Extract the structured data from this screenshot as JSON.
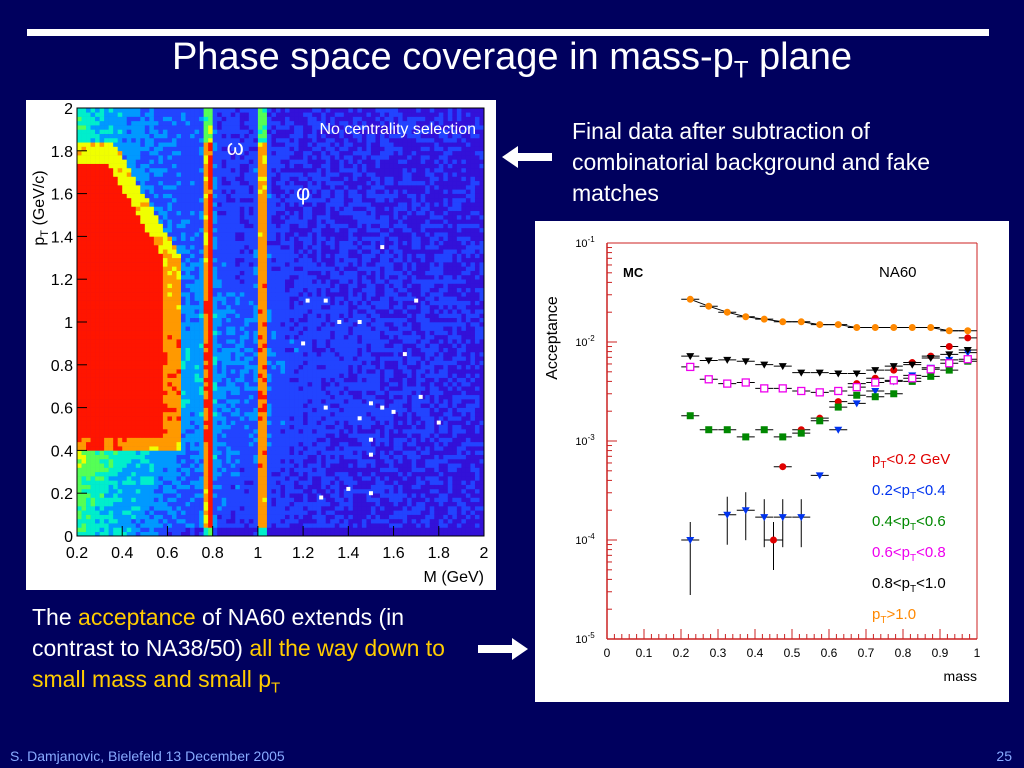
{
  "slide": {
    "title_main": "Phase space coverage in mass-p",
    "title_sub": "T",
    "title_end": " plane",
    "description": "Final data after subtraction of combinatorial background and fake matches",
    "bottom_1": "The ",
    "bottom_2": "acceptance",
    "bottom_3": " of NA60 extends (in contrast to NA38/50) ",
    "bottom_4": "all the way down to small mass and small p",
    "bottom_sub": "T",
    "footer_left": "S. Damjanovic, Bielefeld 13 December 2005",
    "footer_right": "25",
    "colors": {
      "background": "#00005e",
      "highlight": "#ffcc00",
      "footer": "#88aaff"
    }
  },
  "chart_data": [
    {
      "type": "heatmap",
      "annotation": "No centrality selection",
      "xlabel": "M (GeV)",
      "ylabel_main": "p",
      "ylabel_sub": "T",
      "ylabel_end": " (GeV/c)",
      "xlim": [
        0.2,
        2.0
      ],
      "ylim": [
        0,
        2.0
      ],
      "x_ticks": [
        "0.2",
        "0.4",
        "0.6",
        "0.8",
        "1",
        "1.2",
        "1.4",
        "1.6",
        "1.8",
        "2"
      ],
      "y_ticks": [
        "0",
        "0.2",
        "0.4",
        "0.6",
        "0.8",
        "1",
        "1.2",
        "1.4",
        "1.6",
        "1.8",
        "2"
      ],
      "x_tick_values": [
        0.2,
        0.4,
        0.6,
        0.8,
        1.0,
        1.2,
        1.4,
        1.6,
        1.8,
        2.0
      ],
      "y_tick_values": [
        0,
        0.2,
        0.4,
        0.6,
        0.8,
        1.0,
        1.2,
        1.4,
        1.6,
        1.8,
        2.0
      ],
      "peaks": [
        {
          "label": "ω",
          "mass": 0.782
        },
        {
          "label": "φ",
          "mass": 1.019
        }
      ]
    },
    {
      "type": "scatter",
      "annotation_left": "MC",
      "annotation_right": "NA60",
      "xlabel": "mass",
      "ylabel": "Acceptance",
      "xlim": [
        0,
        1
      ],
      "ylim": [
        1e-05,
        0.1
      ],
      "log_y": true,
      "x_ticks": [
        "0",
        "0.1",
        "0.2",
        "0.3",
        "0.4",
        "0.5",
        "0.6",
        "0.7",
        "0.8",
        "0.9",
        "1"
      ],
      "x_tick_values": [
        0,
        0.1,
        0.2,
        0.3,
        0.4,
        0.5,
        0.6,
        0.7,
        0.8,
        0.9,
        1.0
      ],
      "y_ticks": [
        {
          "base": "10",
          "exp": "-5",
          "v": 1e-05
        },
        {
          "base": "10",
          "exp": "-4",
          "v": 0.0001
        },
        {
          "base": "10",
          "exp": "-3",
          "v": 0.001
        },
        {
          "base": "10",
          "exp": "-2",
          "v": 0.01
        },
        {
          "base": "10",
          "exp": "-1",
          "v": 0.1
        }
      ],
      "series": [
        {
          "name_main": "p",
          "name_sub": "T",
          "name_end": "<0.2 GeV",
          "color": "#e00000",
          "marker": "circle",
          "x": [
            0.45,
            0.475,
            0.525,
            0.575,
            0.625,
            0.675,
            0.725,
            0.775,
            0.825,
            0.875,
            0.925,
            0.975
          ],
          "y": [
            0.0001,
            0.00055,
            0.0013,
            0.0017,
            0.0025,
            0.0038,
            0.0043,
            0.0052,
            0.0062,
            0.0072,
            0.009,
            0.011
          ]
        },
        {
          "name_main": "0.2<p",
          "name_sub": "T",
          "name_end": "<0.4",
          "color": "#0033ee",
          "marker": "triangle-down",
          "x": [
            0.225,
            0.325,
            0.375,
            0.425,
            0.475,
            0.525,
            0.575,
            0.625,
            0.675,
            0.725,
            0.775,
            0.825,
            0.875,
            0.925,
            0.975
          ],
          "y": [
            0.0001,
            0.00018,
            0.0002,
            0.00017,
            0.00017,
            0.00017,
            0.00045,
            0.0013,
            0.0024,
            0.0032,
            0.004,
            0.0046,
            0.0055,
            0.0066,
            0.0078
          ]
        },
        {
          "name_main": "0.4<p",
          "name_sub": "T",
          "name_end": "<0.6",
          "color": "#008800",
          "marker": "square",
          "x": [
            0.225,
            0.275,
            0.325,
            0.375,
            0.425,
            0.475,
            0.525,
            0.575,
            0.625,
            0.675,
            0.725,
            0.775,
            0.825,
            0.875,
            0.925,
            0.975
          ],
          "y": [
            0.0018,
            0.0013,
            0.0013,
            0.0011,
            0.0013,
            0.0011,
            0.0012,
            0.0016,
            0.0022,
            0.0029,
            0.0028,
            0.003,
            0.004,
            0.0045,
            0.0052,
            0.0064
          ]
        },
        {
          "name_main": "0.6<p",
          "name_sub": "T",
          "name_end": "<0.8",
          "color": "#ee00ee",
          "marker": "open-square",
          "x": [
            0.225,
            0.275,
            0.325,
            0.375,
            0.425,
            0.475,
            0.525,
            0.575,
            0.625,
            0.675,
            0.725,
            0.775,
            0.825,
            0.875,
            0.925,
            0.975
          ],
          "y": [
            0.0056,
            0.0042,
            0.0038,
            0.0039,
            0.0034,
            0.0034,
            0.0032,
            0.0031,
            0.0032,
            0.0035,
            0.0039,
            0.0041,
            0.0043,
            0.0053,
            0.0061,
            0.0067
          ]
        },
        {
          "name_main": "0.8<p",
          "name_sub": "T",
          "name_end": "<1.0",
          "color": "#000000",
          "marker": "triangle-down",
          "x": [
            0.225,
            0.275,
            0.325,
            0.375,
            0.425,
            0.475,
            0.525,
            0.575,
            0.625,
            0.675,
            0.725,
            0.775,
            0.825,
            0.875,
            0.925,
            0.975
          ],
          "y": [
            0.0072,
            0.0065,
            0.0066,
            0.0064,
            0.0059,
            0.0057,
            0.0049,
            0.0049,
            0.0048,
            0.0048,
            0.0052,
            0.0057,
            0.0059,
            0.0069,
            0.0075,
            0.0083
          ]
        },
        {
          "name_main": "p",
          "name_sub": "T",
          "name_end": ">1.0",
          "color": "#ff8800",
          "marker": "circle",
          "x": [
            0.225,
            0.275,
            0.325,
            0.375,
            0.425,
            0.475,
            0.525,
            0.575,
            0.625,
            0.675,
            0.725,
            0.775,
            0.825,
            0.875,
            0.925,
            0.975
          ],
          "y": [
            0.027,
            0.023,
            0.02,
            0.018,
            0.017,
            0.016,
            0.016,
            0.015,
            0.015,
            0.014,
            0.014,
            0.014,
            0.014,
            0.014,
            0.013,
            0.013
          ]
        }
      ]
    }
  ]
}
